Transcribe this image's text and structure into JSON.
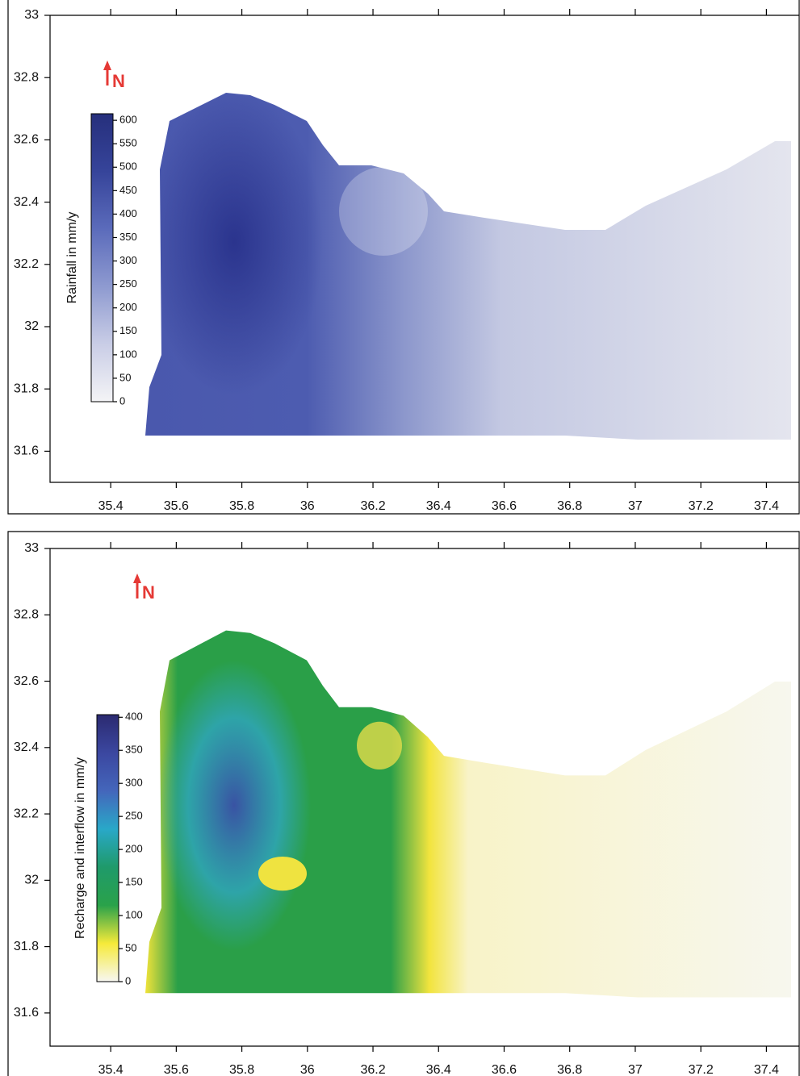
{
  "panels": [
    {
      "xlim": [
        35.215,
        37.5
      ],
      "xticks": [
        35.4,
        35.6,
        35.8,
        36,
        36.2,
        36.4,
        36.6,
        36.8,
        37,
        37.2,
        37.4
      ],
      "ylim": [
        31.5,
        33
      ],
      "yticks": [
        31.6,
        31.8,
        32,
        32.2,
        32.4,
        32.6,
        32.8,
        33
      ],
      "north": "N",
      "colorbar": {
        "label": "Rainfall in mm/y",
        "lim": [
          0,
          614
        ],
        "ticks": [
          0,
          50,
          100,
          150,
          200,
          250,
          300,
          350,
          400,
          450,
          500,
          550,
          600
        ],
        "colors": [
          "#f4f4f6",
          "#c9cde6",
          "#8e9ad0",
          "#5b6bbb",
          "#36449a",
          "#262f7c"
        ]
      }
    },
    {
      "xlim": [
        35.215,
        37.5
      ],
      "xticks": [
        35.4,
        35.6,
        35.8,
        36,
        36.2,
        36.4,
        36.6,
        36.8,
        37,
        37.2,
        37.4
      ],
      "ylim": [
        31.5,
        33
      ],
      "yticks": [
        31.6,
        31.8,
        32,
        32.2,
        32.4,
        32.6,
        32.8,
        33
      ],
      "north": "N",
      "colorbar": {
        "label": "Recharge and interflow in mm/y",
        "lim": [
          0,
          404
        ],
        "ticks": [
          0,
          50,
          100,
          150,
          200,
          250,
          300,
          350,
          400
        ],
        "colors": [
          "#f7f7f2",
          "#f6ea3a",
          "#2aa24a",
          "#1f9a6a",
          "#29a8c8",
          "#4466bb",
          "#3b47a0",
          "#2b2a70"
        ]
      }
    }
  ]
}
